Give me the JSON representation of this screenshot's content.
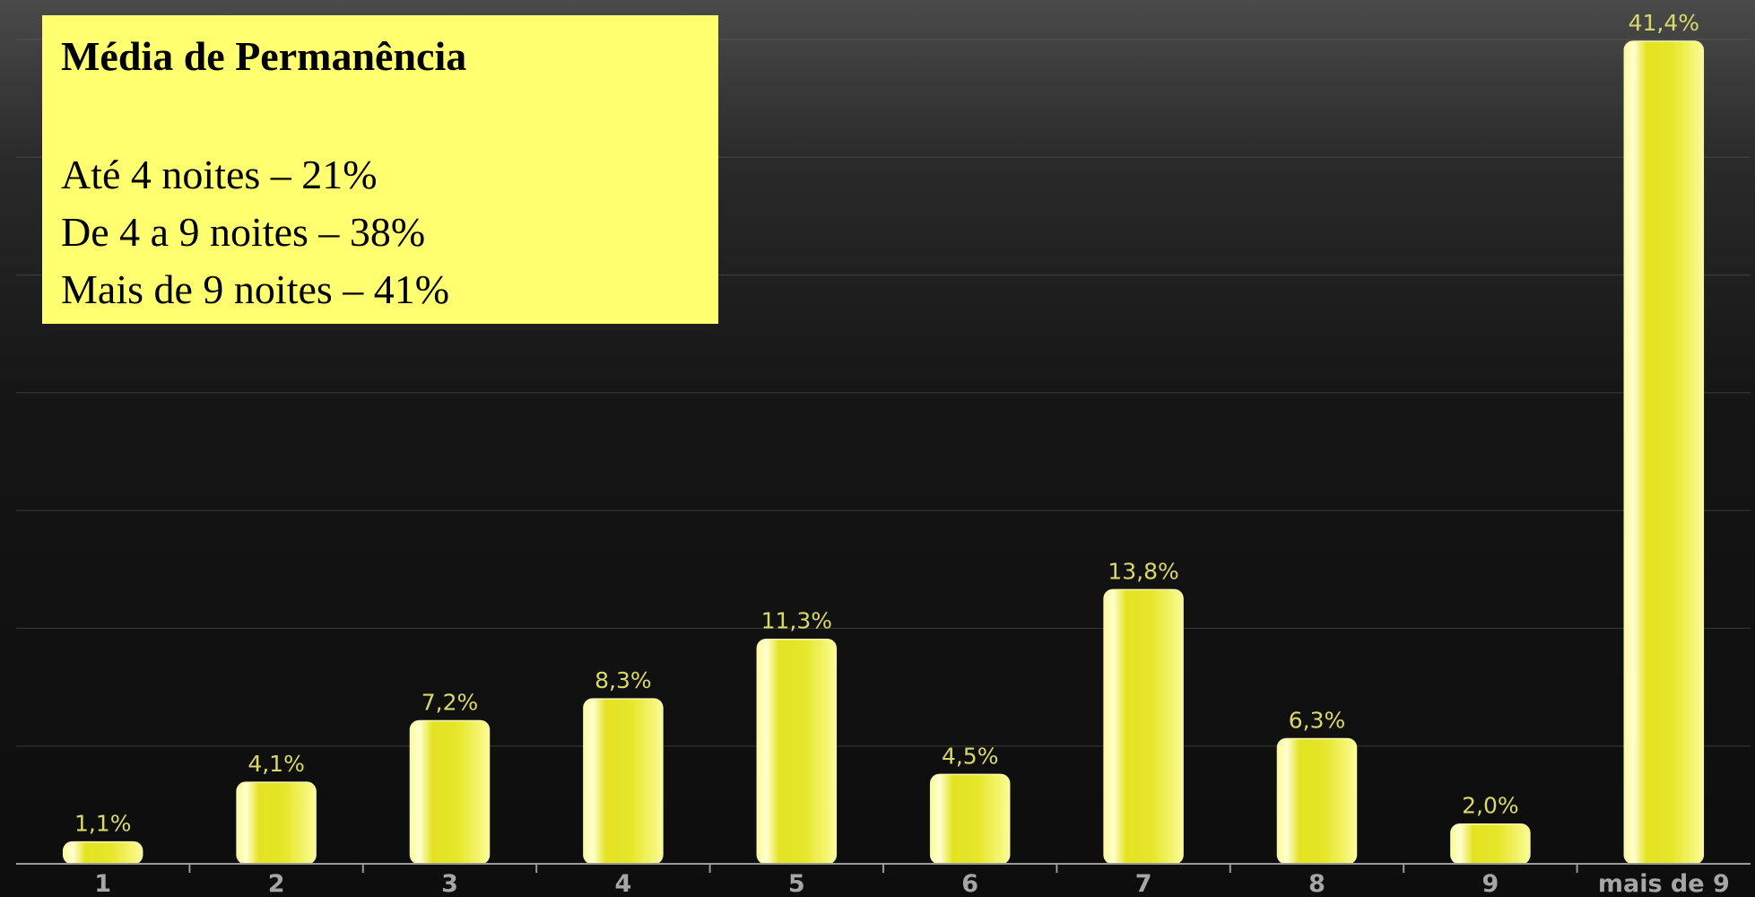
{
  "legend": {
    "title": "Média de Permanência",
    "lines": [
      "Até 4 noites – 21%",
      "De 4 a 9 noites – 38%",
      "Mais de 9 noites – 41%"
    ]
  },
  "colors": {
    "bar_fill": "#e6e62a",
    "bar_highlight": "#ffffa8",
    "value_label": "#d9d96a",
    "tick_label": "#a6a6a6",
    "legend_background": "#ffff6f"
  },
  "chart_data": {
    "type": "bar",
    "categories": [
      "1",
      "2",
      "3",
      "4",
      "5",
      "6",
      "7",
      "8",
      "9",
      "mais de 9"
    ],
    "values": [
      1.1,
      4.1,
      7.2,
      8.3,
      11.3,
      4.5,
      13.8,
      6.3,
      2.0,
      41.4
    ],
    "data_labels": [
      "1,1%",
      "4,1%",
      "7,2%",
      "8,3%",
      "11,3%",
      "4,5%",
      "13,8%",
      "6,3%",
      "2,0%",
      "41,4%"
    ],
    "ylim": [
      0,
      41.4
    ],
    "grid": true,
    "title": "",
    "xlabel": "",
    "ylabel": ""
  }
}
